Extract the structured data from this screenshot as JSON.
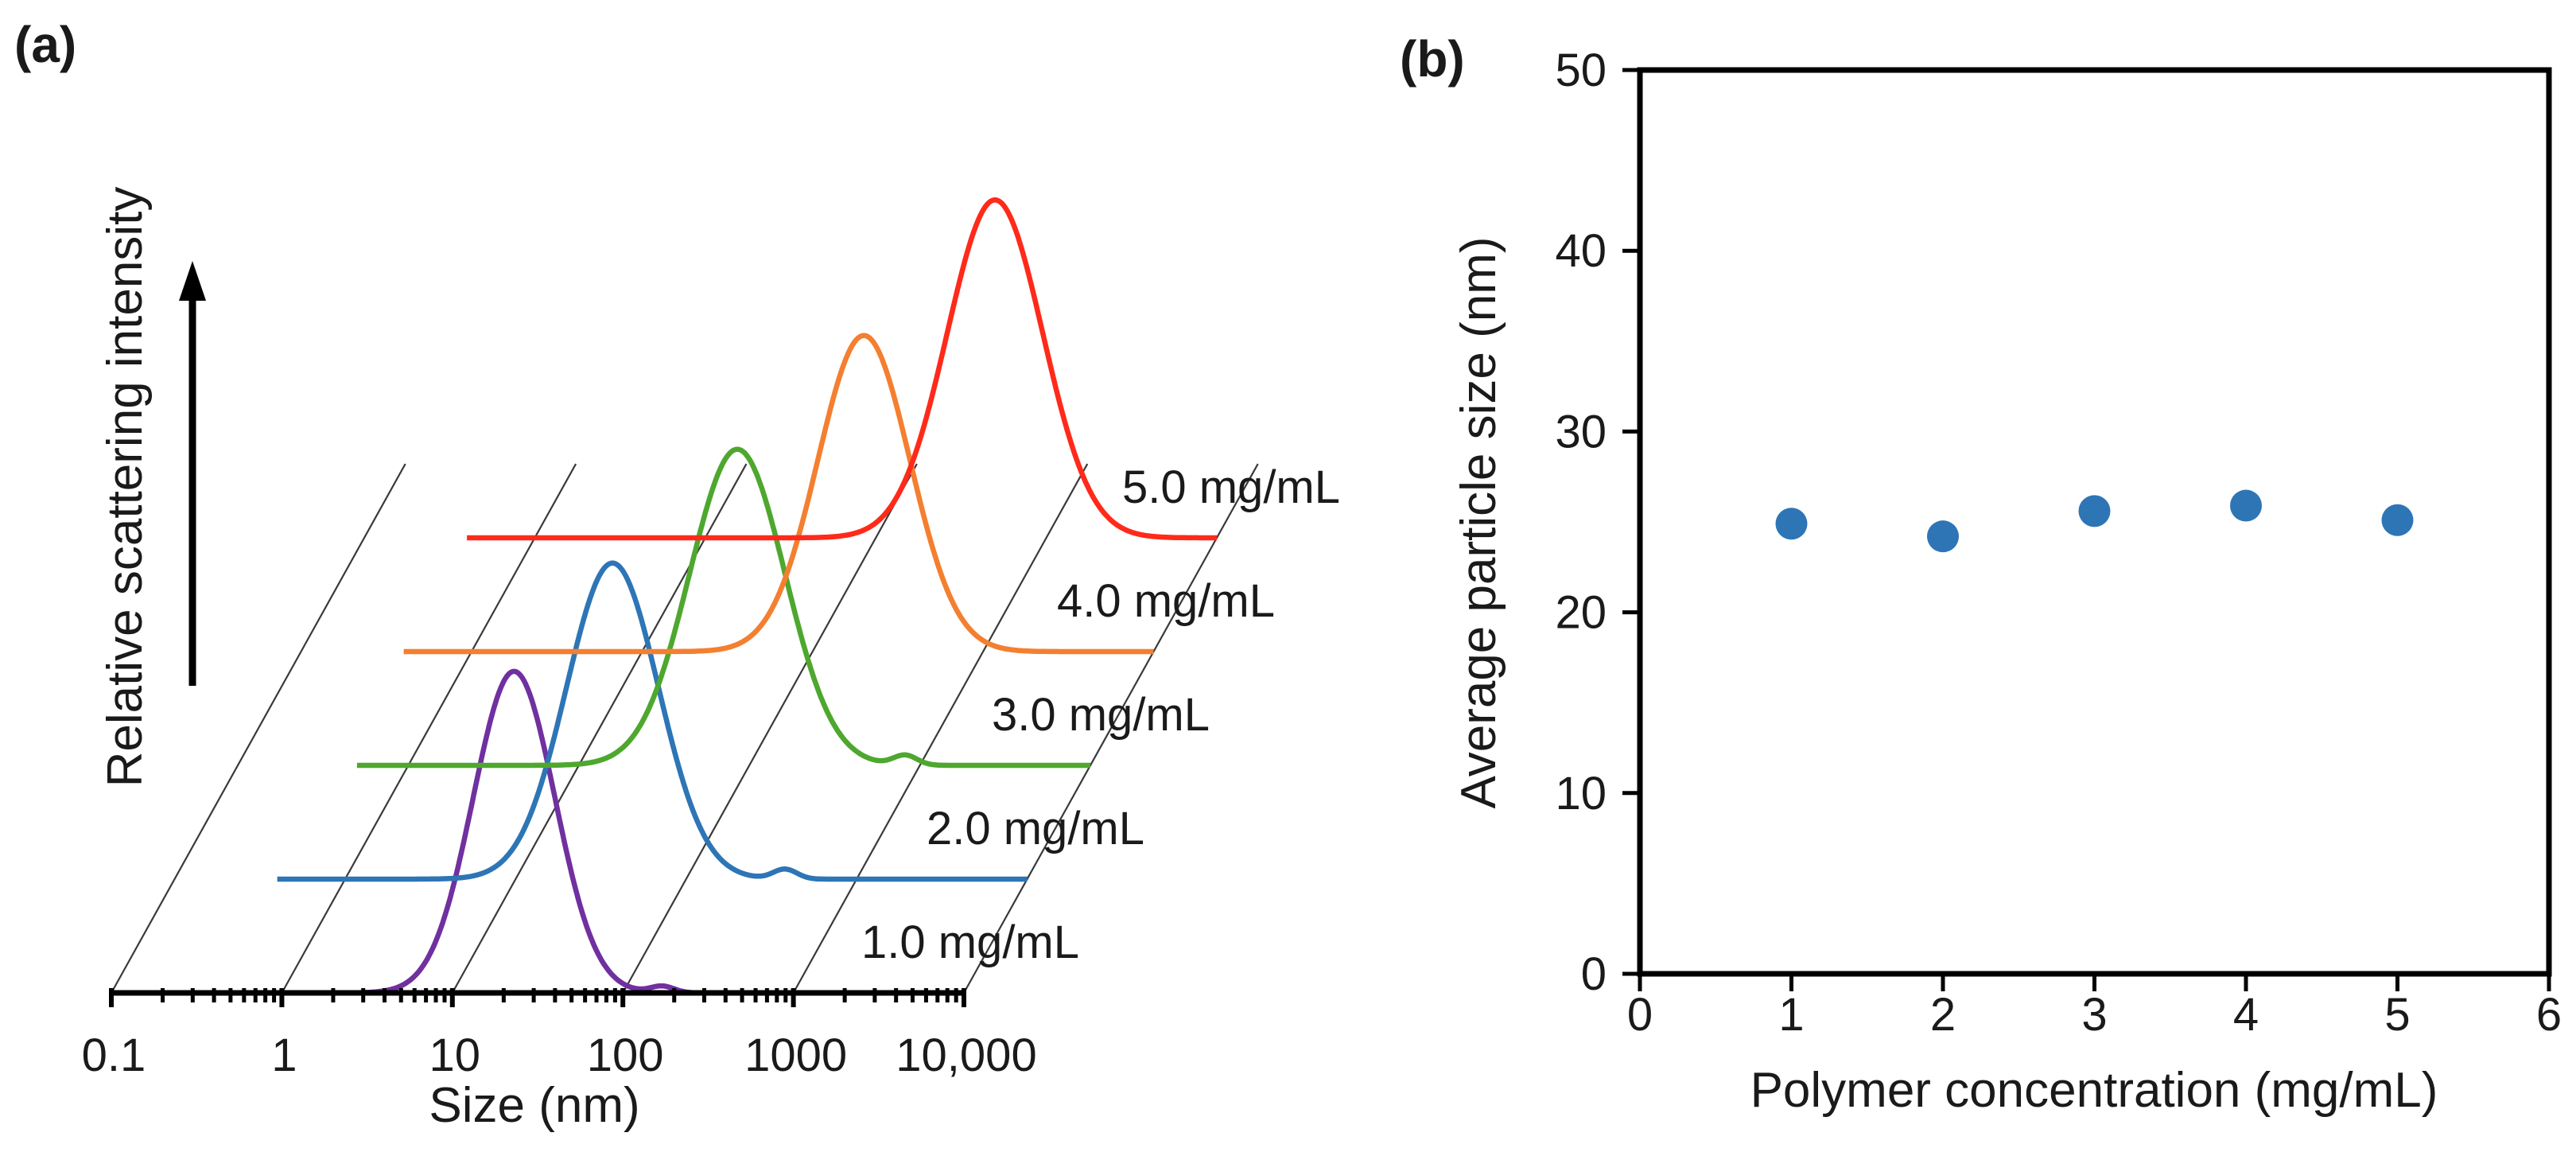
{
  "chart_data": [
    {
      "type": "line",
      "panel_label": "(a)",
      "xlabel": "Size (nm)",
      "ylabel": "Relative scattering intensity",
      "x_scale": "log",
      "x_ticks": [
        0.1,
        1,
        10,
        100,
        1000,
        10000
      ],
      "x_tick_labels": [
        "0.1",
        "1",
        "10",
        "100",
        "1000",
        "10,000"
      ],
      "xlim": [
        0.1,
        10000
      ],
      "series": [
        {
          "name": "1.0 mg/mL",
          "color": "#7030a0",
          "range": [
            0.3,
            10000
          ],
          "peak_x": 23,
          "peak_height": 0.59,
          "sigma": 0.24,
          "shoulder_x": 170,
          "shoulder_height": 0.012
        },
        {
          "name": "2.0 mg/mL",
          "color": "#2e75b6",
          "range": [
            0.4,
            10000
          ],
          "peak_x": 37,
          "peak_height": 0.58,
          "sigma": 0.27,
          "shoulder_x": 380,
          "shoulder_height": 0.018
        },
        {
          "name": "3.0 mg/mL",
          "color": "#4ea72e",
          "range": [
            0.5,
            10000
          ],
          "peak_x": 85,
          "peak_height": 0.58,
          "sigma": 0.28,
          "shoulder_x": 820,
          "shoulder_height": 0.018
        },
        {
          "name": "4.0 mg/mL",
          "color": "#f47f30",
          "range": [
            0.4,
            10000
          ],
          "peak_x": 200,
          "peak_height": 0.58,
          "sigma": 0.27,
          "shoulder_x": null,
          "shoulder_height": 0
        },
        {
          "name": "5.0 mg/mL",
          "color": "#ff2a1a",
          "range": [
            0.4,
            10000
          ],
          "peak_x": 500,
          "peak_height": 0.62,
          "sigma": 0.28,
          "shoulder_x": null,
          "shoulder_height": 0
        }
      ]
    },
    {
      "type": "scatter",
      "panel_label": "(b)",
      "xlabel": "Polymer concentration (mg/mL)",
      "ylabel": "Average particle size (nm)",
      "xlim": [
        0,
        6
      ],
      "ylim": [
        0,
        50
      ],
      "x_ticks": [
        0,
        1,
        2,
        3,
        4,
        5,
        6
      ],
      "y_ticks": [
        0,
        10,
        20,
        30,
        40,
        50
      ],
      "color": "#2e75b6",
      "x": [
        1,
        2,
        3,
        4,
        5
      ],
      "y": [
        24.9,
        24.2,
        25.6,
        25.9,
        25.1
      ]
    }
  ]
}
